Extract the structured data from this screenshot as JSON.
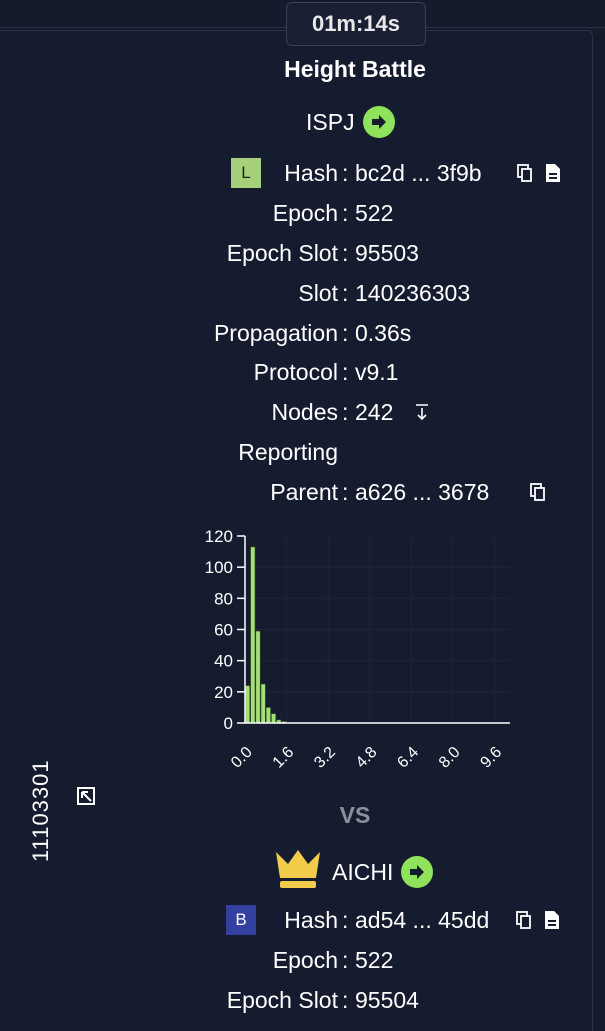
{
  "timer": "01m:14s",
  "title": "Height Battle",
  "side_label": "11103301",
  "vs_label": "VS",
  "block_a": {
    "pool": "ISPJ",
    "badge": "L",
    "badge_color": "#a6d07a",
    "rows": [
      {
        "label": "Hash",
        "value": "bc2d ... 3f9b"
      },
      {
        "label": "Epoch",
        "value": "522"
      },
      {
        "label": "Epoch Slot",
        "value": "95503"
      },
      {
        "label": "Slot",
        "value": "140236303"
      },
      {
        "label": "Propagation",
        "value": "0.36s"
      },
      {
        "label": "Protocol",
        "value": "v9.1"
      },
      {
        "label": "Nodes",
        "label2": "Reporting",
        "value": "242"
      },
      {
        "label": "Parent",
        "value": "a626 ... 3678"
      }
    ]
  },
  "block_b": {
    "pool": "AICHI",
    "winner": true,
    "badge": "B",
    "badge_color": "#3340a0",
    "rows": [
      {
        "label": "Hash",
        "value": "ad54 ... 45dd"
      },
      {
        "label": "Epoch",
        "value": "522"
      },
      {
        "label": "Epoch Slot",
        "value": "95504"
      }
    ]
  },
  "chart_data": {
    "type": "bar",
    "bar_color": "#a6df7a",
    "x": [
      0.0,
      0.2,
      0.4,
      0.6,
      0.8,
      1.0,
      1.2,
      1.4
    ],
    "values": [
      24,
      113,
      59,
      25,
      10,
      6,
      2,
      1
    ],
    "xlim": [
      0,
      10.2
    ],
    "ylim": [
      0,
      120
    ],
    "x_ticks": [
      "0.0",
      "1.6",
      "3.2",
      "4.8",
      "6.4",
      "8.0",
      "9.6"
    ],
    "y_ticks": [
      "0",
      "20",
      "40",
      "60",
      "80",
      "100",
      "120"
    ],
    "grid": true
  }
}
